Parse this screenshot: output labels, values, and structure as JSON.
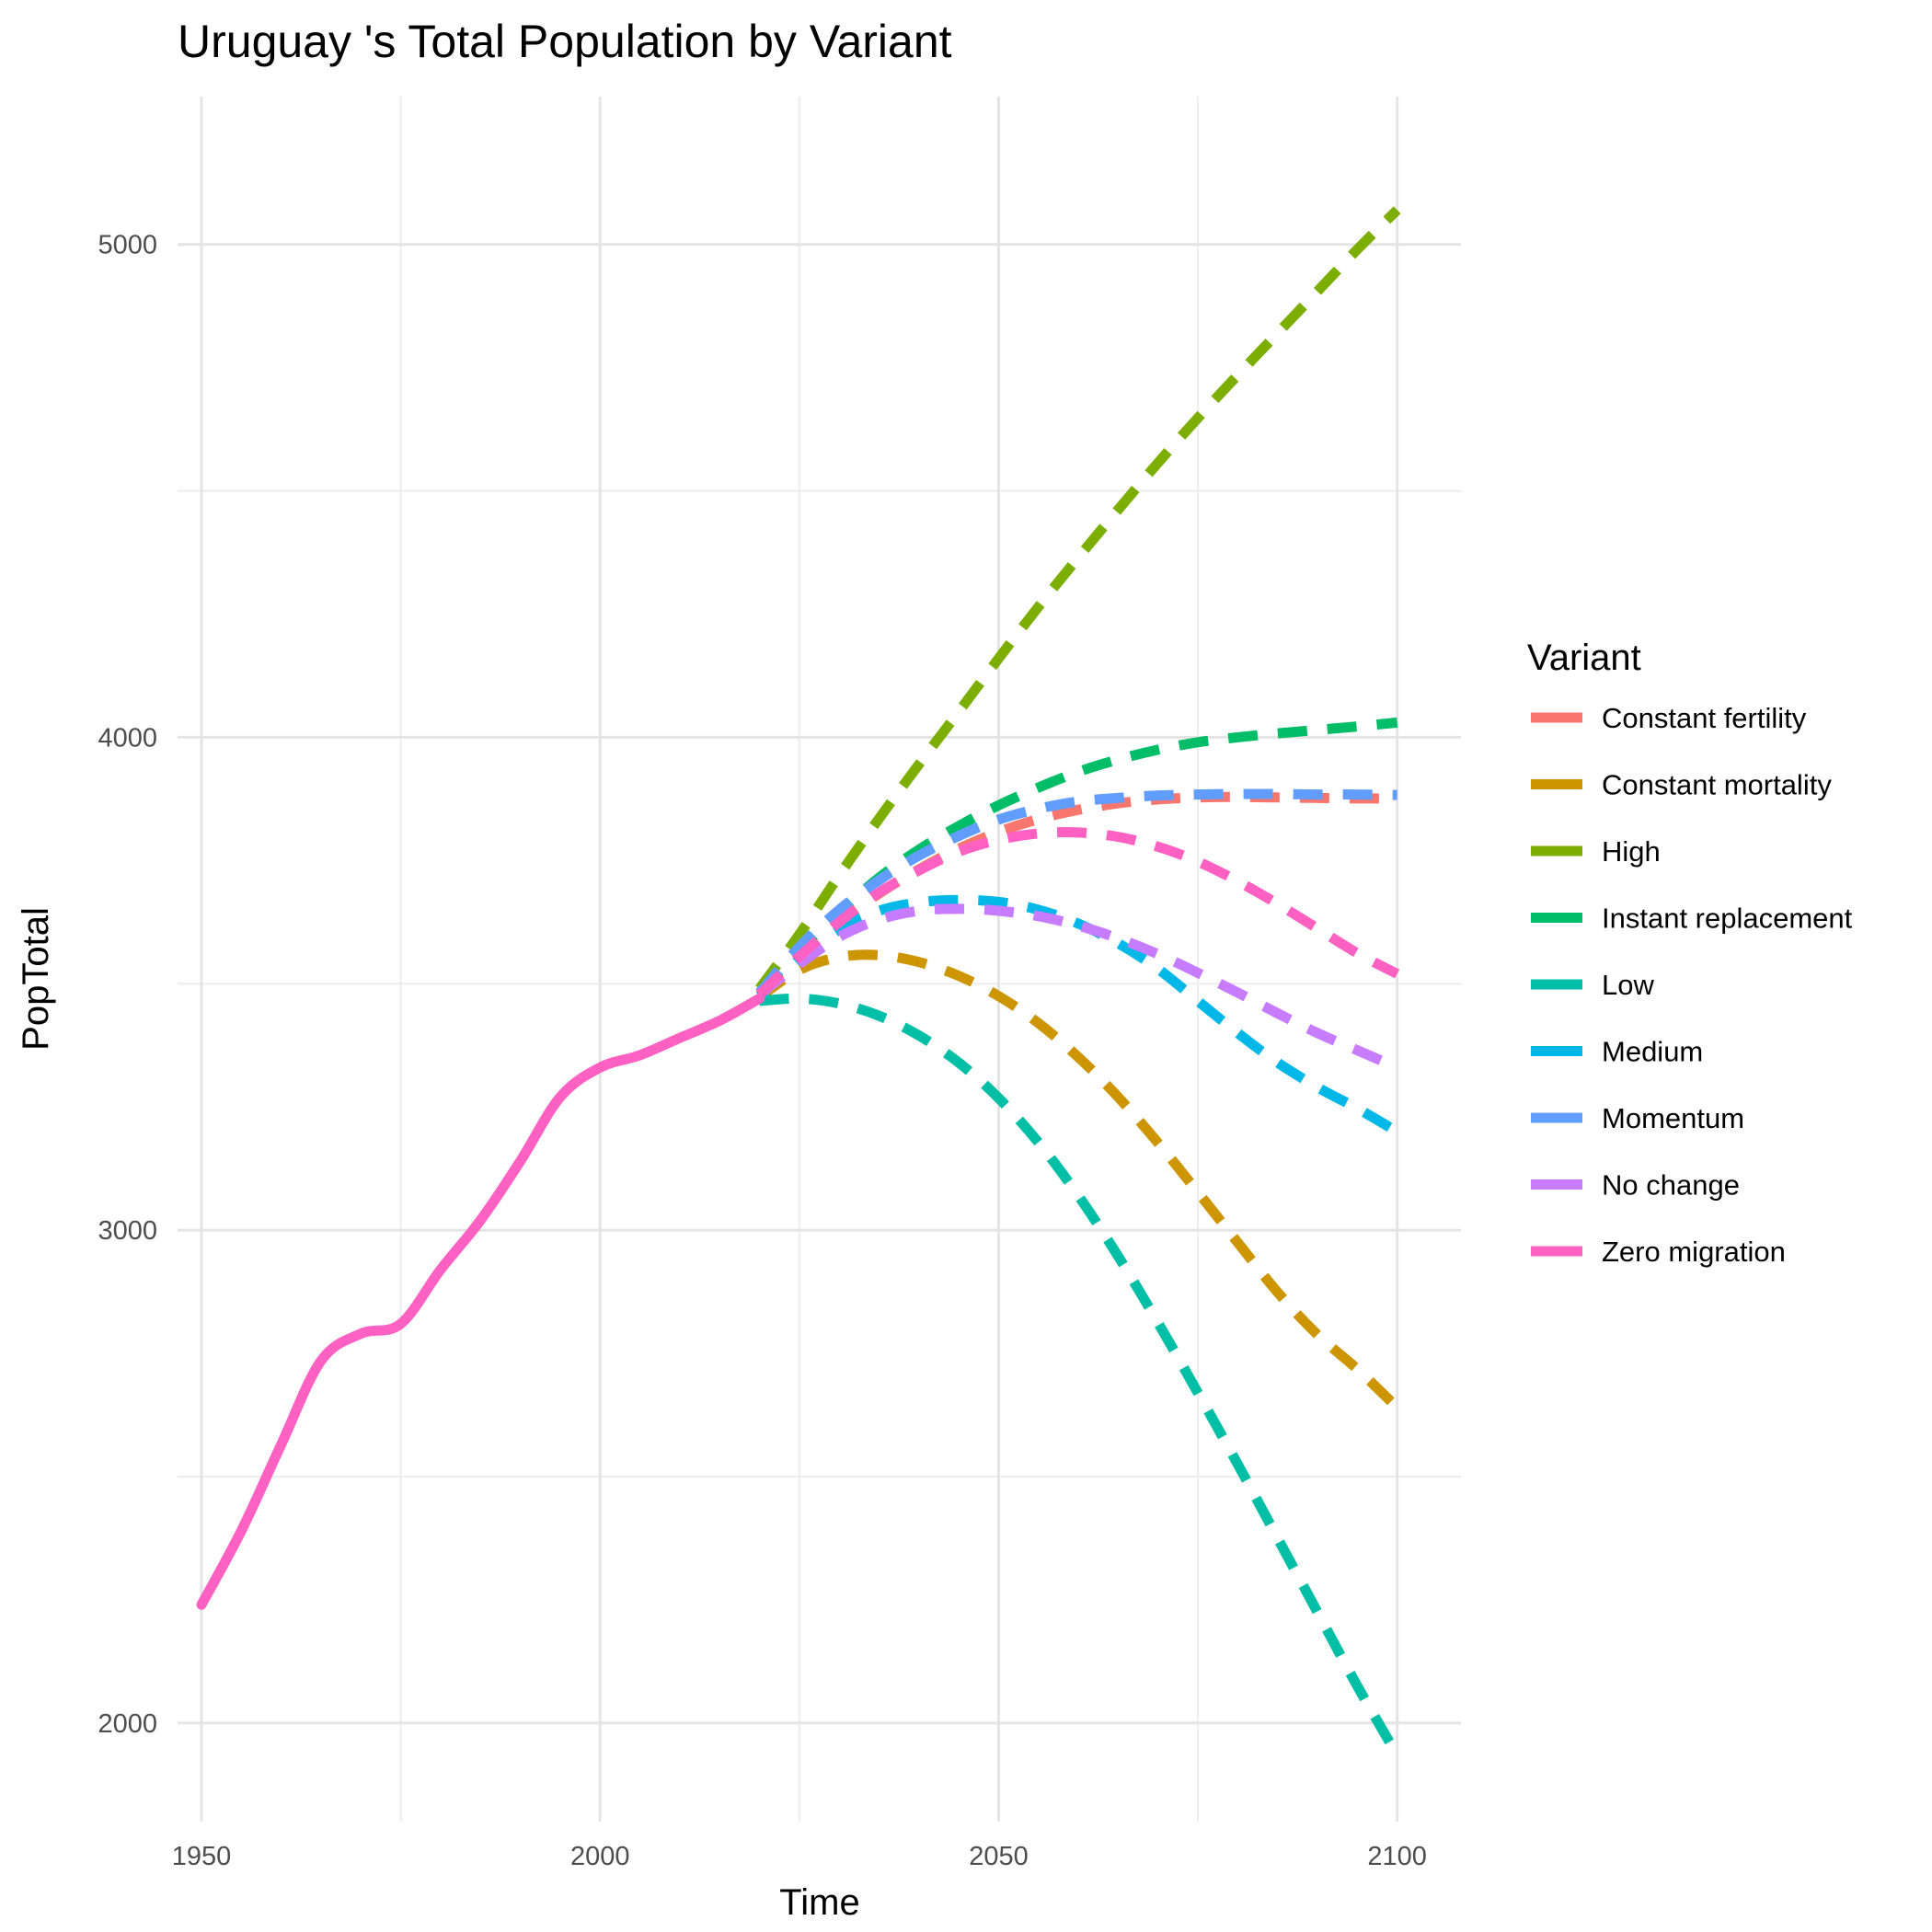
{
  "chart_data": {
    "type": "line",
    "title": "Uruguay 's Total Population by Variant",
    "xlabel": "Time",
    "ylabel": "PopTotal",
    "xlim": [
      1947,
      2108
    ],
    "ylim": [
      1800,
      5300
    ],
    "x_ticks": [
      1950,
      2000,
      2050,
      2100
    ],
    "x_tick_labels": [
      "1950",
      "2000",
      "2050",
      "2100"
    ],
    "x_minor_ticks": [
      1975,
      2025,
      2075
    ],
    "y_ticks": [
      2000,
      3000,
      4000,
      5000
    ],
    "y_tick_labels": [
      "2000",
      "3000",
      "4000",
      "5000"
    ],
    "y_minor_ticks": [
      2500,
      3500,
      4500
    ],
    "grid": true,
    "legend": {
      "title": "Variant",
      "position": "right"
    },
    "series": [
      {
        "name": "Constant fertility",
        "color": "#F8766D",
        "dash": "dashed",
        "x": [
          2020,
          2025,
          2030,
          2035,
          2040,
          2045,
          2050,
          2055,
          2060,
          2065,
          2070,
          2075,
          2080,
          2085,
          2090,
          2095,
          2100
        ],
        "y": [
          3480,
          3560,
          3625,
          3683,
          3732,
          3774,
          3808,
          3834,
          3853,
          3866,
          3874,
          3878,
          3879,
          3878,
          3877,
          3876,
          3876
        ]
      },
      {
        "name": "Constant mortality",
        "color": "#CD9600",
        "dash": "dashed",
        "x": [
          2020,
          2025,
          2030,
          2035,
          2040,
          2045,
          2050,
          2055,
          2060,
          2065,
          2070,
          2075,
          2080,
          2085,
          2090,
          2095,
          2100
        ],
        "y": [
          3473,
          3528,
          3554,
          3558,
          3544,
          3516,
          3475,
          3420,
          3351,
          3270,
          3177,
          3077,
          2975,
          2874,
          2788,
          2718,
          2640
        ]
      },
      {
        "name": "High",
        "color": "#7CAE00",
        "dash": "dashed",
        "x": [
          2020,
          2025,
          2030,
          2035,
          2040,
          2045,
          2050,
          2055,
          2060,
          2065,
          2070,
          2075,
          2080,
          2085,
          2090,
          2095,
          2100
        ],
        "y": [
          3490,
          3600,
          3720,
          3835,
          3945,
          4052,
          4160,
          4265,
          4365,
          4462,
          4557,
          4648,
          4735,
          4820,
          4905,
          4990,
          5070
        ]
      },
      {
        "name": "Instant replacement",
        "color": "#00BE67",
        "dash": "dashed",
        "x": [
          2020,
          2025,
          2030,
          2035,
          2040,
          2045,
          2050,
          2055,
          2060,
          2065,
          2070,
          2075,
          2080,
          2085,
          2090,
          2095,
          2100
        ],
        "y": [
          3482,
          3568,
          3645,
          3715,
          3772,
          3820,
          3862,
          3898,
          3930,
          3955,
          3975,
          3990,
          4000,
          4008,
          4015,
          4022,
          4030
        ]
      },
      {
        "name": "Low",
        "color": "#00BFA6",
        "dash": "dashed",
        "x": [
          2020,
          2025,
          2030,
          2035,
          2040,
          2045,
          2050,
          2055,
          2060,
          2065,
          2070,
          2075,
          2080,
          2085,
          2090,
          2095,
          2100
        ],
        "y": [
          3465,
          3470,
          3460,
          3435,
          3395,
          3340,
          3268,
          3178,
          3070,
          2947,
          2812,
          2670,
          2525,
          2375,
          2225,
          2075,
          1935
        ]
      },
      {
        "name": "Medium",
        "color": "#00B8E7",
        "dash": "dashed",
        "x": [
          2020,
          2025,
          2030,
          2035,
          2040,
          2045,
          2050,
          2055,
          2060,
          2065,
          2070,
          2075,
          2080,
          2085,
          2090,
          2095,
          2100
        ],
        "y": [
          3475,
          3550,
          3610,
          3648,
          3665,
          3670,
          3666,
          3650,
          3622,
          3582,
          3530,
          3465,
          3400,
          3340,
          3290,
          3247,
          3200
        ]
      },
      {
        "name": "Momentum",
        "color": "#619CFF",
        "dash": "dashed",
        "x": [
          2020,
          2025,
          2030,
          2035,
          2040,
          2045,
          2050,
          2055,
          2060,
          2065,
          2070,
          2075,
          2080,
          2085,
          2090,
          2095,
          2100
        ],
        "y": [
          3482,
          3575,
          3650,
          3710,
          3760,
          3800,
          3833,
          3855,
          3870,
          3877,
          3882,
          3884,
          3885,
          3885,
          3884,
          3884,
          3883
        ]
      },
      {
        "name": "No change",
        "color": "#C77CFF",
        "dash": "dashed",
        "x": [
          2020,
          2025,
          2030,
          2035,
          2040,
          2045,
          2050,
          2055,
          2060,
          2065,
          2070,
          2075,
          2080,
          2085,
          2090,
          2095,
          2100
        ],
        "y": [
          3478,
          3540,
          3595,
          3630,
          3648,
          3652,
          3648,
          3637,
          3618,
          3592,
          3560,
          3522,
          3482,
          3440,
          3400,
          3365,
          3330
        ]
      },
      {
        "name": "Zero migration",
        "color": "#FF61C3",
        "dash": "dashed",
        "x": [
          2020,
          2025,
          2030,
          2035,
          2040,
          2045,
          2050,
          2055,
          2060,
          2065,
          2070,
          2075,
          2080,
          2085,
          2090,
          2095,
          2100
        ],
        "y": [
          3478,
          3555,
          3625,
          3685,
          3730,
          3768,
          3792,
          3805,
          3807,
          3798,
          3778,
          3748,
          3708,
          3662,
          3612,
          3562,
          3520
        ]
      },
      {
        "name": "Zero migration",
        "color": "#FF61C3",
        "dash": "solid",
        "legend": false,
        "x": [
          1950,
          1955,
          1960,
          1965,
          1970,
          1975,
          1980,
          1985,
          1990,
          1995,
          2000,
          2005,
          2010,
          2015,
          2020
        ],
        "y": [
          2240,
          2390,
          2565,
          2735,
          2790,
          2810,
          2920,
          3020,
          3140,
          3270,
          3330,
          3355,
          3390,
          3425,
          3470
        ]
      }
    ]
  }
}
